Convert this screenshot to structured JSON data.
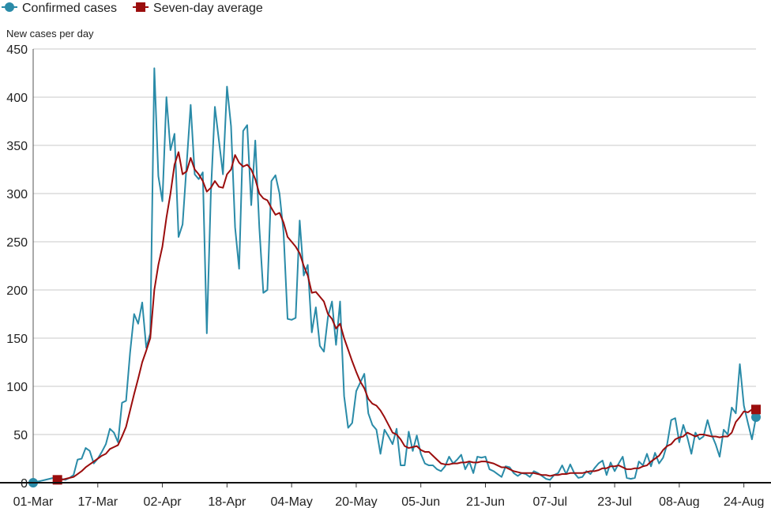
{
  "chart_data": {
    "type": "line",
    "y_label": "New cases per day",
    "categories": [
      "01-Mar",
      null,
      null,
      null,
      null,
      null,
      null,
      null,
      null,
      null,
      null,
      null,
      null,
      null,
      null,
      null,
      "17-Mar",
      null,
      null,
      null,
      null,
      null,
      null,
      null,
      null,
      null,
      null,
      null,
      null,
      null,
      null,
      null,
      "02-Apr",
      null,
      null,
      null,
      null,
      null,
      null,
      null,
      null,
      null,
      null,
      null,
      null,
      null,
      null,
      null,
      "18-Apr",
      null,
      null,
      null,
      null,
      null,
      null,
      null,
      null,
      null,
      null,
      null,
      null,
      null,
      null,
      null,
      "04-May",
      null,
      null,
      null,
      null,
      null,
      null,
      null,
      null,
      null,
      null,
      null,
      null,
      null,
      null,
      null,
      "20-May",
      null,
      null,
      null,
      null,
      null,
      null,
      null,
      null,
      null,
      null,
      null,
      null,
      null,
      null,
      null,
      "05-Jun",
      null,
      null,
      null,
      null,
      null,
      null,
      null,
      null,
      null,
      null,
      null,
      null,
      null,
      null,
      null,
      "21-Jun",
      null,
      null,
      null,
      null,
      null,
      null,
      null,
      null,
      null,
      null,
      null,
      null,
      null,
      null,
      null,
      "07-Jul",
      null,
      null,
      null,
      null,
      null,
      null,
      null,
      null,
      null,
      null,
      null,
      null,
      null,
      null,
      null,
      "23-Jul",
      null,
      null,
      null,
      null,
      null,
      null,
      null,
      null,
      null,
      null,
      null,
      null,
      null,
      null,
      null,
      "08-Aug",
      null,
      null,
      null,
      null,
      null,
      null,
      null,
      null,
      null,
      null,
      null,
      null,
      null,
      null,
      null,
      "24-Aug",
      null,
      null,
      null
    ],
    "series": [
      {
        "name": "Confirmed cases",
        "color": "#2a8ba8",
        "marker": "circle",
        "values": [
          0,
          1,
          2,
          3,
          4,
          5,
          5,
          4,
          3,
          5,
          8,
          24,
          25,
          36,
          33,
          20,
          25,
          32,
          40,
          56,
          52,
          42,
          83,
          85,
          135,
          175,
          165,
          187,
          140,
          155,
          430,
          318,
          292,
          400,
          345,
          362,
          255,
          268,
          330,
          392,
          320,
          315,
          322,
          155,
          300,
          390,
          355,
          320,
          411,
          370,
          265,
          222,
          365,
          371,
          288,
          355,
          265,
          197,
          200,
          313,
          319,
          300,
          260,
          170,
          169,
          171,
          272,
          215,
          226,
          156,
          182,
          142,
          136,
          172,
          188,
          143,
          188,
          90,
          57,
          62,
          95,
          104,
          113,
          72,
          60,
          55,
          30,
          55,
          48,
          40,
          56,
          18,
          18,
          53,
          33,
          49,
          30,
          20,
          18,
          18,
          14,
          12,
          17,
          27,
          20,
          24,
          29,
          14,
          22,
          10,
          27,
          26,
          27,
          14,
          12,
          9,
          6,
          17,
          16,
          10,
          7,
          10,
          9,
          6,
          12,
          10,
          7,
          4,
          3,
          8,
          10,
          18,
          9,
          19,
          10,
          5,
          6,
          12,
          9,
          15,
          20,
          23,
          8,
          21,
          12,
          20,
          27,
          5,
          4,
          5,
          22,
          18,
          30,
          17,
          31,
          20,
          26,
          40,
          65,
          67,
          42,
          60,
          47,
          30,
          52,
          45,
          48,
          65,
          50,
          40,
          27,
          55,
          50,
          78,
          72,
          123,
          80,
          62,
          45,
          68
        ]
      },
      {
        "name": "Seven-day average",
        "color": "#9b0d0d",
        "marker": "square",
        "values": [
          null,
          null,
          null,
          null,
          null,
          null,
          3,
          3,
          4,
          5,
          6,
          9,
          12,
          16,
          19,
          22,
          25,
          28,
          30,
          35,
          37,
          39,
          48,
          58,
          75,
          92,
          108,
          125,
          137,
          150,
          200,
          226,
          245,
          275,
          300,
          330,
          343,
          320,
          323,
          337,
          325,
          320,
          313,
          302,
          306,
          313,
          307,
          306,
          320,
          325,
          340,
          332,
          328,
          330,
          325,
          315,
          300,
          295,
          293,
          285,
          278,
          280,
          270,
          255,
          250,
          245,
          238,
          225,
          215,
          197,
          198,
          193,
          188,
          175,
          170,
          160,
          165,
          150,
          138,
          126,
          115,
          105,
          98,
          87,
          82,
          80,
          75,
          68,
          60,
          52,
          50,
          45,
          38,
          36,
          37,
          38,
          34,
          32,
          32,
          28,
          24,
          20,
          19,
          19,
          20,
          20,
          21,
          21,
          22,
          21,
          21,
          22,
          22,
          21,
          20,
          18,
          16,
          16,
          14,
          12,
          11,
          10,
          10,
          10,
          10,
          9,
          8,
          8,
          7,
          8,
          8,
          9,
          9,
          10,
          10,
          10,
          10,
          11,
          12,
          12,
          13,
          15,
          15,
          17,
          17,
          18,
          16,
          14,
          14,
          15,
          15,
          17,
          18,
          22,
          25,
          28,
          34,
          38,
          40,
          45,
          47,
          48,
          52,
          50,
          48,
          50,
          50,
          49,
          48,
          48,
          47,
          48,
          48,
          52,
          63,
          68,
          74,
          73,
          76,
          76
        ]
      }
    ],
    "ylim": [
      0,
      450
    ],
    "yticks": [
      0,
      50,
      100,
      150,
      200,
      250,
      300,
      350,
      400,
      450
    ],
    "grid": true,
    "legend": "top-left"
  }
}
